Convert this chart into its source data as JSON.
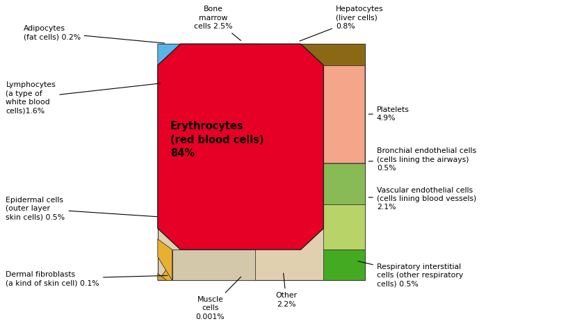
{
  "bg": "white",
  "sq_L": 0.27,
  "sq_R": 0.625,
  "sq_B": 0.14,
  "sq_T": 0.865,
  "colors": {
    "erythrocytes": "#e60026",
    "platelets": "#f4a58a",
    "bonemarrow": "#d4756a",
    "hepatocytes": "#8b6914",
    "adipocytes": "#5ab4e8",
    "lymphocytes": "#c02020",
    "epidermal": "#e8b030",
    "dermal": "#c8a050",
    "muscle": "#d4c8aa",
    "other": "#e0d0b0",
    "respiratory": "#44aa22",
    "vascular": "#b8d468",
    "bronchial": "#88bb55"
  },
  "labels": {
    "adipocytes": "Adipocytes\n(fat cells) 0.2%",
    "lymphocytes": "Lymphocytes\n(a type of\nwhite blood\ncells)1.6%",
    "bonemarrow": "Bone\nmarrow\ncells 2.5%",
    "hepatocytes": "Hepatocytes\n(liver cells)\n0.8%",
    "platelets": "Platelets\n4.9%",
    "bronchial": "Bronchial endothelial cells\n(cells lining the airways)\n0.5%",
    "vascular": "Vascular endothelial cells\n(cells lining blood vessels)\n2.1%",
    "respiratory": "Respiratory interstitial\ncells (other respiratory\ncells) 0.5%",
    "other": "Other\n2.2%",
    "muscle": "Muscle\ncells\n0.001%",
    "dermal": "Dermal fibroblasts\n(a kind of skin cell) 0.1%",
    "epidermal": "Epidermal cells\n(outer layer\nskin cells) 0.5%",
    "erythrocytes": "Erythrocytes\n(red blood cells)\n84%"
  }
}
